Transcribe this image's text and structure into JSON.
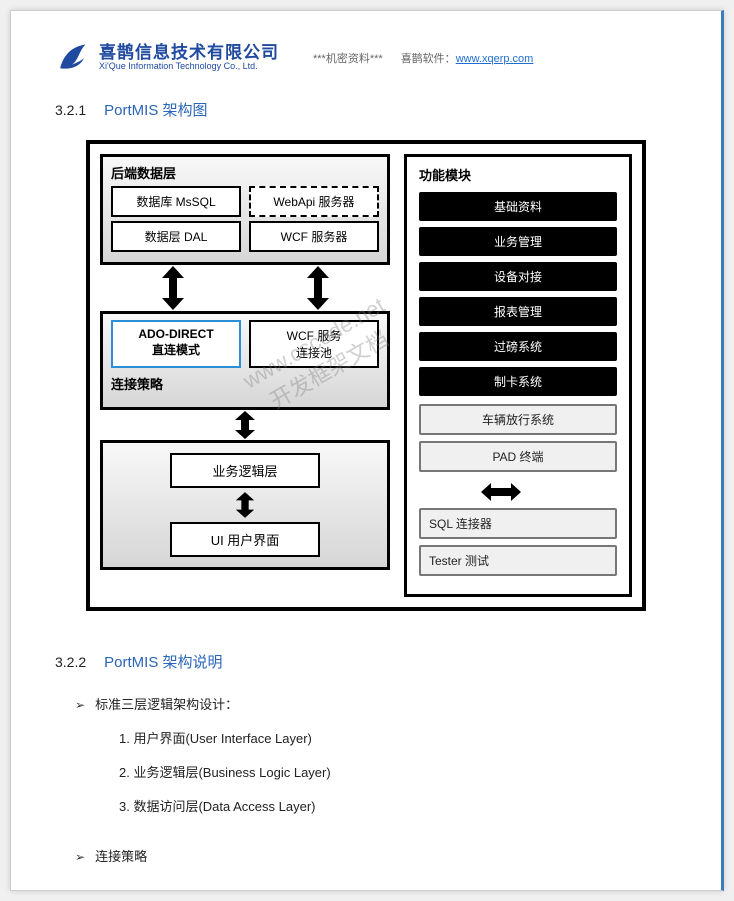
{
  "header": {
    "company_cn": "喜鹊信息技术有限公司",
    "company_en": "Xi'Que Information Technology Co., Ltd.",
    "confidential": "***机密资料***",
    "soft_label": "喜鹊软件：",
    "url": "www.xqerp.com",
    "logo_color": "#1f4aa0"
  },
  "section1": {
    "num": "3.2.1",
    "title": "PortMIS 架构图"
  },
  "section2": {
    "num": "3.2.2",
    "title": "PortMIS 架构说明"
  },
  "diagram": {
    "backend_title": "后端数据层",
    "backend_cells": {
      "db": "数据库 MsSQL",
      "webapi": "WebApi 服务器",
      "dal": "数据层 DAL",
      "wcf": "WCF 服务器"
    },
    "strategy_title": "连接策略",
    "strategy_cells": {
      "ado": "ADO-DIRECT\n直连模式",
      "wcfpool": "WCF 服务\n连接池"
    },
    "logic_layer": "业务逻辑层",
    "ui_layer": "UI  用户界面",
    "modules_title": "功能模块",
    "black_modules": [
      "基础资料",
      "业务管理",
      "设备对接",
      "报表管理",
      "过磅系统",
      "制卡系统"
    ],
    "light_modules": [
      "车辆放行系统",
      "PAD 终端"
    ],
    "grey_modules": [
      "SQL 连接器",
      "Tester 测试"
    ],
    "colors": {
      "border": "#000000",
      "grad_top": "#f8f8f8",
      "grad_bot": "#d6d6d6",
      "blue_border": "#2a8fd6",
      "black_fill": "#000000",
      "light_fill": "#f0f0f0",
      "light_border": "#777777"
    }
  },
  "watermark": "www.cscode.net\n开发框架文档",
  "bullets": {
    "b1": "标准三层逻辑架构设计：",
    "items": [
      "1.  用户界面(User Interface Layer)",
      "2.  业务逻辑层(Business Logic Layer)",
      "3.  数据访问层(Data Access Layer)"
    ],
    "b2": "连接策略"
  }
}
